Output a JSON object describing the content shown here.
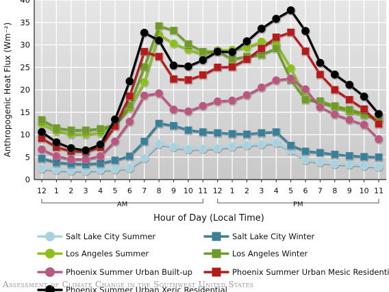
{
  "chart_data": {
    "type": "line",
    "ylabel": "Anthropogenic Heat Flux (Wm⁻²)",
    "xlabel": "Hour of Day (Local Time)",
    "ylim": [
      0,
      40
    ],
    "yticks": [
      0,
      5,
      10,
      15,
      20,
      25,
      30,
      35,
      40
    ],
    "categories": [
      "12",
      "1",
      "2",
      "3",
      "4",
      "5",
      "6",
      "7",
      "8",
      "9",
      "10",
      "11",
      "12",
      "1",
      "2",
      "3",
      "4",
      "5",
      "6",
      "7",
      "8",
      "9",
      "10",
      "11"
    ],
    "period_labels": [
      "AM",
      "PM"
    ],
    "grid": true,
    "legend_position": "bottom",
    "series": [
      {
        "name": "Salt Lake City Summer",
        "color": "#a9d2e1",
        "values": [
          2.5,
          2.2,
          2.0,
          2.0,
          2.2,
          2.3,
          2.6,
          4.8,
          8.0,
          7.3,
          6.8,
          6.9,
          7.0,
          7.4,
          7.7,
          7.9,
          8.2,
          6.5,
          4.4,
          3.9,
          3.5,
          3.4,
          3.1,
          2.9
        ]
      },
      {
        "name": "Salt Lake City Winter",
        "color": "#3c7f99",
        "values": [
          4.7,
          3.8,
          3.5,
          3.4,
          3.6,
          4.3,
          5.2,
          8.5,
          12.5,
          12.0,
          11.0,
          10.6,
          10.4,
          10.2,
          10.1,
          10.4,
          10.6,
          7.6,
          6.3,
          6.0,
          5.6,
          5.3,
          5.1,
          5.0
        ]
      },
      {
        "name": "Los Angeles Summer",
        "color": "#8cbf1e",
        "values": [
          12.4,
          10.8,
          10.1,
          10.1,
          10.4,
          12.2,
          15.9,
          21.7,
          32.3,
          30.3,
          29.0,
          27.9,
          28.8,
          28.9,
          29.4,
          30.7,
          30.2,
          24.8,
          18.2,
          17.2,
          16.1,
          15.1,
          14.3,
          13.5
        ]
      },
      {
        "name": "Los Angeles Winter",
        "color": "#6f9a2c",
        "values": [
          13.3,
          11.5,
          11.0,
          11.0,
          11.3,
          12.3,
          16.5,
          25.1,
          34.2,
          33.2,
          30.2,
          28.5,
          28.6,
          26.8,
          27.4,
          27.8,
          29.2,
          22.2,
          17.8,
          17.5,
          16.4,
          15.6,
          14.7,
          13.5
        ]
      },
      {
        "name": "Phoenix Summer Urban Built-up",
        "color": "#b8597f",
        "values": [
          6.7,
          5.2,
          4.5,
          4.5,
          5.2,
          8.5,
          12.9,
          18.7,
          19.2,
          15.6,
          15.2,
          16.4,
          17.4,
          17.6,
          18.8,
          20.5,
          22.1,
          22.5,
          20.1,
          16.1,
          14.5,
          13.3,
          12.2,
          9.0
        ]
      },
      {
        "name": "Phoenix Summer Urban Mesic Residential",
        "color": "#b31a1a",
        "values": [
          9.2,
          7.2,
          6.3,
          6.2,
          7.2,
          11.9,
          18.6,
          28.5,
          27.4,
          22.4,
          22.2,
          23.3,
          25.0,
          25.1,
          26.8,
          29.2,
          31.7,
          32.8,
          28.6,
          23.4,
          20.0,
          17.8,
          15.7,
          12.4
        ]
      },
      {
        "name": "Phoenix Summer Urban Xeric Residential",
        "color": "#000000",
        "values": [
          10.6,
          8.3,
          7.0,
          6.5,
          7.8,
          13.4,
          21.9,
          32.7,
          31.0,
          25.4,
          25.2,
          26.6,
          28.5,
          28.4,
          30.8,
          33.6,
          35.8,
          37.7,
          33.1,
          26.0,
          23.4,
          21.1,
          18.5,
          14.6
        ]
      }
    ],
    "source_credit": "Assessment of Climate Change in the Southwest United States"
  }
}
